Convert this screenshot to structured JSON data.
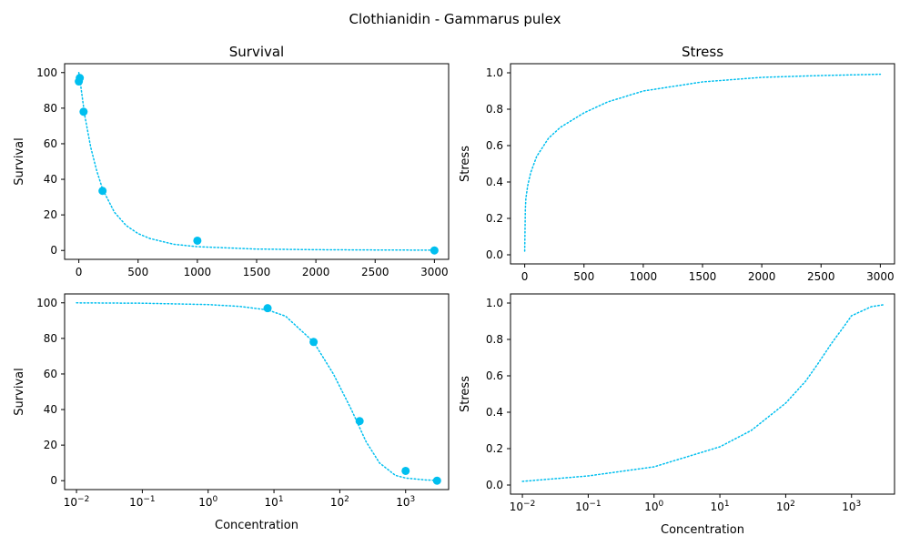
{
  "figure": {
    "title": "Clothianidin - Gammarus pulex"
  },
  "colors": {
    "series": "#00bfef",
    "axis": "#000000"
  },
  "chart_data": [
    {
      "id": "top-left",
      "type": "scatter",
      "title": "Survival",
      "xlabel": "",
      "ylabel": "Survival",
      "xscale": "linear",
      "xlim": [
        -120,
        3120
      ],
      "ylim": [
        -5,
        105
      ],
      "xticks": [
        0,
        500,
        1000,
        1500,
        2000,
        2500,
        3000
      ],
      "xtick_labels": [
        "0",
        "500",
        "1000",
        "1500",
        "2000",
        "2500",
        "3000"
      ],
      "yticks": [
        0,
        20,
        40,
        60,
        80,
        100
      ],
      "ytick_labels": [
        "0",
        "20",
        "40",
        "60",
        "80",
        "100"
      ],
      "points": {
        "x": [
          0,
          8,
          40,
          200,
          1000,
          3000
        ],
        "y": [
          95,
          97,
          78,
          33.5,
          5.5,
          0
        ]
      },
      "curve": {
        "x": [
          0,
          10,
          25,
          50,
          100,
          150,
          200,
          300,
          400,
          500,
          600,
          800,
          1000,
          1500,
          2000,
          2500,
          3000
        ],
        "y": [
          100,
          96,
          88,
          76,
          58,
          45,
          34.5,
          21.5,
          14,
          9.5,
          6.7,
          3.5,
          2.1,
          0.8,
          0.4,
          0.25,
          0.15
        ]
      }
    },
    {
      "id": "top-right",
      "type": "line",
      "title": "Stress",
      "xlabel": "",
      "ylabel": "Stress",
      "xscale": "linear",
      "xlim": [
        -120,
        3120
      ],
      "ylim": [
        -0.05,
        1.05
      ],
      "xticks": [
        0,
        500,
        1000,
        1500,
        2000,
        2500,
        3000
      ],
      "xtick_labels": [
        "0",
        "500",
        "1000",
        "1500",
        "2000",
        "2500",
        "3000"
      ],
      "yticks": [
        0,
        0.2,
        0.4,
        0.6,
        0.8,
        1.0
      ],
      "ytick_labels": [
        "0.0",
        "0.2",
        "0.4",
        "0.6",
        "0.8",
        "1.0"
      ],
      "curve": {
        "x": [
          0,
          5,
          10,
          25,
          50,
          100,
          200,
          300,
          400,
          500,
          700,
          1000,
          1500,
          2000,
          2500,
          3000
        ],
        "y": [
          0.02,
          0.25,
          0.31,
          0.38,
          0.45,
          0.54,
          0.64,
          0.7,
          0.74,
          0.78,
          0.84,
          0.9,
          0.95,
          0.975,
          0.985,
          0.992
        ]
      }
    },
    {
      "id": "bottom-left",
      "type": "scatter",
      "title": "",
      "xlabel": "Concentration",
      "ylabel": "Survival",
      "xscale": "log",
      "xlim": [
        0.0066,
        4500
      ],
      "ylim": [
        -5,
        105
      ],
      "xticks": [
        0.01,
        0.1,
        1,
        10,
        100,
        1000
      ],
      "xtick_labels": [
        [
          "10",
          "−2"
        ],
        [
          "10",
          "−1"
        ],
        [
          "10",
          "0"
        ],
        [
          "10",
          "1"
        ],
        [
          "10",
          "2"
        ],
        [
          "10",
          "3"
        ]
      ],
      "yticks": [
        0,
        20,
        40,
        60,
        80,
        100
      ],
      "ytick_labels": [
        "0",
        "20",
        "40",
        "60",
        "80",
        "100"
      ],
      "points": {
        "x": [
          8,
          40,
          200,
          1000,
          3000
        ],
        "y": [
          97,
          78,
          33.5,
          5.5,
          0
        ]
      },
      "curve": {
        "x": [
          0.01,
          0.1,
          1,
          3,
          8,
          15,
          40,
          80,
          150,
          250,
          400,
          700,
          1000,
          2000,
          3000
        ],
        "y": [
          100,
          99.8,
          99,
          98,
          96,
          92.5,
          78,
          60,
          40,
          22,
          10,
          3,
          1.5,
          0.4,
          0.15
        ]
      }
    },
    {
      "id": "bottom-right",
      "type": "line",
      "title": "",
      "xlabel": "Concentration",
      "ylabel": "Stress",
      "xscale": "log",
      "xlim": [
        0.0066,
        4500
      ],
      "ylim": [
        -0.05,
        1.05
      ],
      "xticks": [
        0.01,
        0.1,
        1,
        10,
        100,
        1000
      ],
      "xtick_labels": [
        [
          "10",
          "−2"
        ],
        [
          "10",
          "−1"
        ],
        [
          "10",
          "0"
        ],
        [
          "10",
          "1"
        ],
        [
          "10",
          "2"
        ],
        [
          "10",
          "3"
        ]
      ],
      "yticks": [
        0,
        0.2,
        0.4,
        0.6,
        0.8,
        1.0
      ],
      "ytick_labels": [
        "0.0",
        "0.2",
        "0.4",
        "0.6",
        "0.8",
        "1.0"
      ],
      "curve": {
        "x": [
          0.01,
          0.1,
          1,
          10,
          30,
          100,
          200,
          300,
          500,
          800,
          1000,
          2000,
          3000
        ],
        "y": [
          0.02,
          0.05,
          0.1,
          0.21,
          0.3,
          0.45,
          0.57,
          0.66,
          0.78,
          0.88,
          0.93,
          0.98,
          0.99
        ]
      }
    }
  ]
}
